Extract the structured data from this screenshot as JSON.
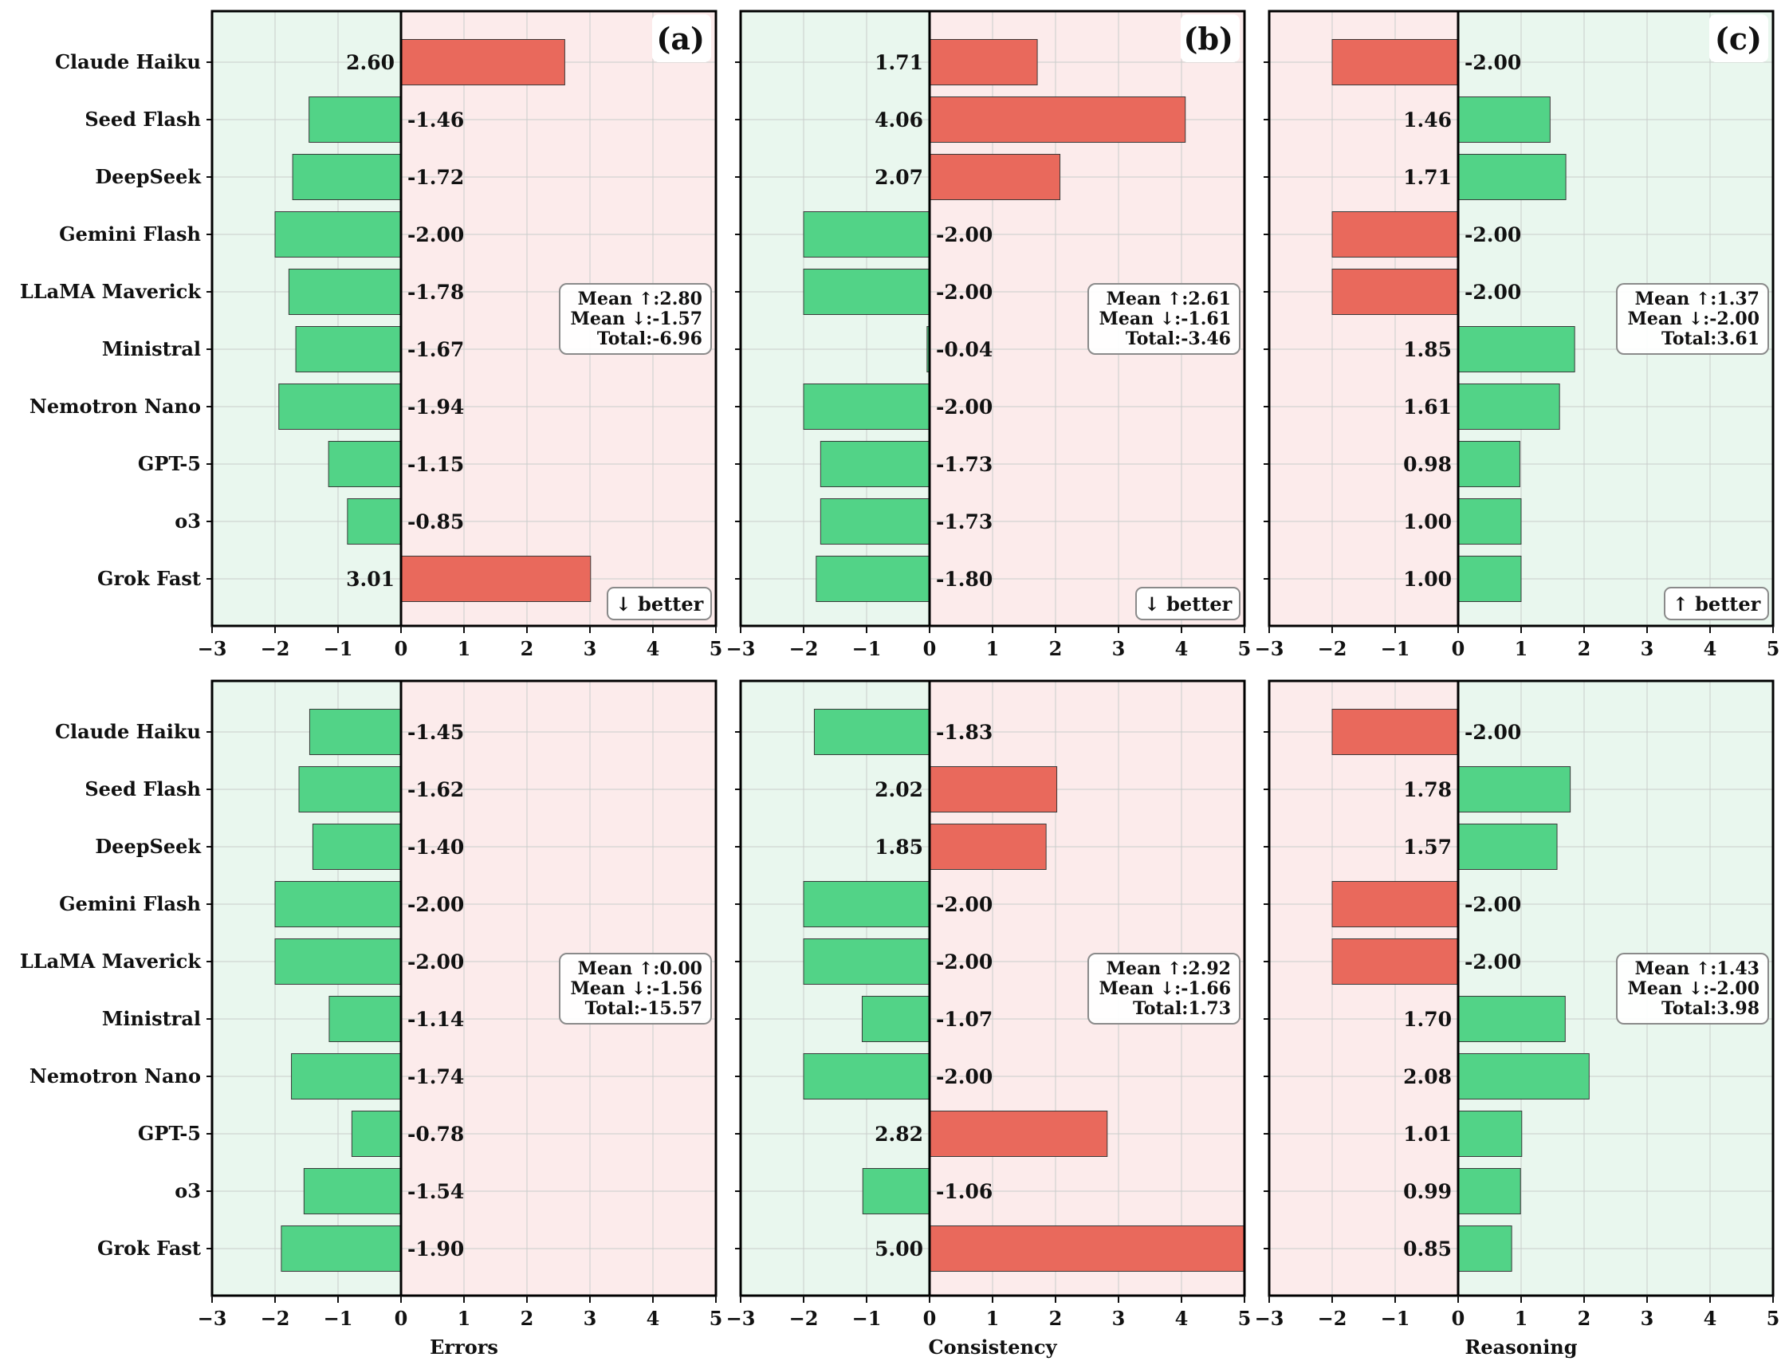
{
  "chart_data": [
    {
      "type": "bar",
      "orientation": "horizontal",
      "panel_id": "(a)",
      "metric": "Errors",
      "better": "↓ better",
      "xlim": [
        -3,
        5
      ],
      "xticks": [
        "−3",
        "−2",
        "−1",
        "0",
        "1",
        "2",
        "3",
        "4",
        "5"
      ],
      "xlabel": "",
      "categories": [
        "Claude Haiku",
        "Seed Flash",
        "DeepSeek",
        "Gemini Flash",
        "LLaMA Maverick",
        "Ministral",
        "Nemotron Nano",
        "GPT-5",
        "o3",
        "Grok Fast"
      ],
      "values": [
        2.6,
        -1.46,
        -1.72,
        -2.0,
        -1.78,
        -1.67,
        -1.94,
        -1.15,
        -0.85,
        3.01
      ],
      "value_labels": [
        "2.60",
        "-1.46",
        "-1.72",
        "-2.00",
        "-1.78",
        "-1.67",
        "-1.94",
        "-1.15",
        "-0.85",
        "3.01"
      ],
      "stats": [
        "Mean ↑:2.80",
        "Mean ↓:-1.57",
        "Total:-6.96"
      ]
    },
    {
      "type": "bar",
      "orientation": "horizontal",
      "panel_id": "(b)",
      "metric": "Consistency",
      "better": "↓ better",
      "xlim": [
        -3,
        5
      ],
      "xticks": [
        "−3",
        "−2",
        "−1",
        "0",
        "1",
        "2",
        "3",
        "4",
        "5"
      ],
      "xlabel": "",
      "categories": [
        "Claude Haiku",
        "Seed Flash",
        "DeepSeek",
        "Gemini Flash",
        "LLaMA Maverick",
        "Ministral",
        "Nemotron Nano",
        "GPT-5",
        "o3",
        "Grok Fast"
      ],
      "values": [
        1.71,
        4.06,
        2.07,
        -2.0,
        -2.0,
        -0.04,
        -2.0,
        -1.73,
        -1.73,
        -1.8
      ],
      "value_labels": [
        "1.71",
        "4.06",
        "2.07",
        "-2.00",
        "-2.00",
        "-0.04",
        "-2.00",
        "-1.73",
        "-1.73",
        "-1.80"
      ],
      "stats": [
        "Mean ↑:2.61",
        "Mean ↓:-1.61",
        "Total:-3.46"
      ]
    },
    {
      "type": "bar",
      "orientation": "horizontal",
      "panel_id": "(c)",
      "metric": "Reasoning",
      "better": "↑ better",
      "xlim": [
        -3,
        5
      ],
      "xticks": [
        "−3",
        "−2",
        "−1",
        "0",
        "1",
        "2",
        "3",
        "4",
        "5"
      ],
      "xlabel": "",
      "categories": [
        "Claude Haiku",
        "Seed Flash",
        "DeepSeek",
        "Gemini Flash",
        "LLaMA Maverick",
        "Ministral",
        "Nemotron Nano",
        "GPT-5",
        "o3",
        "Grok Fast"
      ],
      "values": [
        -2.0,
        1.46,
        1.71,
        -2.0,
        -2.0,
        1.85,
        1.61,
        0.98,
        1.0,
        1.0
      ],
      "value_labels": [
        "-2.00",
        "1.46",
        "1.71",
        "-2.00",
        "-2.00",
        "1.85",
        "1.61",
        "0.98",
        "1.00",
        "1.00"
      ],
      "stats": [
        "Mean ↑:1.37",
        "Mean ↓:-2.00",
        "Total:3.61"
      ]
    },
    {
      "type": "bar",
      "orientation": "horizontal",
      "panel_id": "",
      "metric": "Errors",
      "better": "",
      "xlim": [
        -3,
        5
      ],
      "xticks": [
        "−3",
        "−2",
        "−1",
        "0",
        "1",
        "2",
        "3",
        "4",
        "5"
      ],
      "xlabel": "Errors",
      "categories": [
        "Claude Haiku",
        "Seed Flash",
        "DeepSeek",
        "Gemini Flash",
        "LLaMA Maverick",
        "Ministral",
        "Nemotron Nano",
        "GPT-5",
        "o3",
        "Grok Fast"
      ],
      "values": [
        -1.45,
        -1.62,
        -1.4,
        -2.0,
        -2.0,
        -1.14,
        -1.74,
        -0.78,
        -1.54,
        -1.9
      ],
      "value_labels": [
        "-1.45",
        "-1.62",
        "-1.40",
        "-2.00",
        "-2.00",
        "-1.14",
        "-1.74",
        "-0.78",
        "-1.54",
        "-1.90"
      ],
      "stats": [
        "Mean ↑:0.00",
        "Mean ↓:-1.56",
        "Total:-15.57"
      ]
    },
    {
      "type": "bar",
      "orientation": "horizontal",
      "panel_id": "",
      "metric": "Consistency",
      "better": "",
      "xlim": [
        -3,
        5
      ],
      "xticks": [
        "−3",
        "−2",
        "−1",
        "0",
        "1",
        "2",
        "3",
        "4",
        "5"
      ],
      "xlabel": "Consistency",
      "categories": [
        "Claude Haiku",
        "Seed Flash",
        "DeepSeek",
        "Gemini Flash",
        "LLaMA Maverick",
        "Ministral",
        "Nemotron Nano",
        "GPT-5",
        "o3",
        "Grok Fast"
      ],
      "values": [
        -1.83,
        2.02,
        1.85,
        -2.0,
        -2.0,
        -1.07,
        -2.0,
        2.82,
        -1.06,
        5.0
      ],
      "value_labels": [
        "-1.83",
        "2.02",
        "1.85",
        "-2.00",
        "-2.00",
        "-1.07",
        "-2.00",
        "2.82",
        "-1.06",
        "5.00"
      ],
      "stats": [
        "Mean ↑:2.92",
        "Mean ↓:-1.66",
        "Total:1.73"
      ]
    },
    {
      "type": "bar",
      "orientation": "horizontal",
      "panel_id": "",
      "metric": "Reasoning",
      "better": "",
      "xlim": [
        -3,
        5
      ],
      "xticks": [
        "−3",
        "−2",
        "−1",
        "0",
        "1",
        "2",
        "3",
        "4",
        "5"
      ],
      "xlabel": "Reasoning",
      "categories": [
        "Claude Haiku",
        "Seed Flash",
        "DeepSeek",
        "Gemini Flash",
        "LLaMA Maverick",
        "Ministral",
        "Nemotron Nano",
        "GPT-5",
        "o3",
        "Grok Fast"
      ],
      "values": [
        -2.0,
        1.78,
        1.57,
        -2.0,
        -2.0,
        1.7,
        2.08,
        1.01,
        0.99,
        0.85
      ],
      "value_labels": [
        "-2.00",
        "1.78",
        "1.57",
        "-2.00",
        "-2.00",
        "1.70",
        "2.08",
        "1.01",
        "0.99",
        "0.85"
      ],
      "stats": [
        "Mean ↑:1.43",
        "Mean ↓:-2.00",
        "Total:3.98"
      ]
    }
  ],
  "colors": {
    "good_bar": "#52d387",
    "bad_bar": "#e9695c",
    "good_bg": "#e9f7ee",
    "bad_bg": "#fcebeb"
  }
}
